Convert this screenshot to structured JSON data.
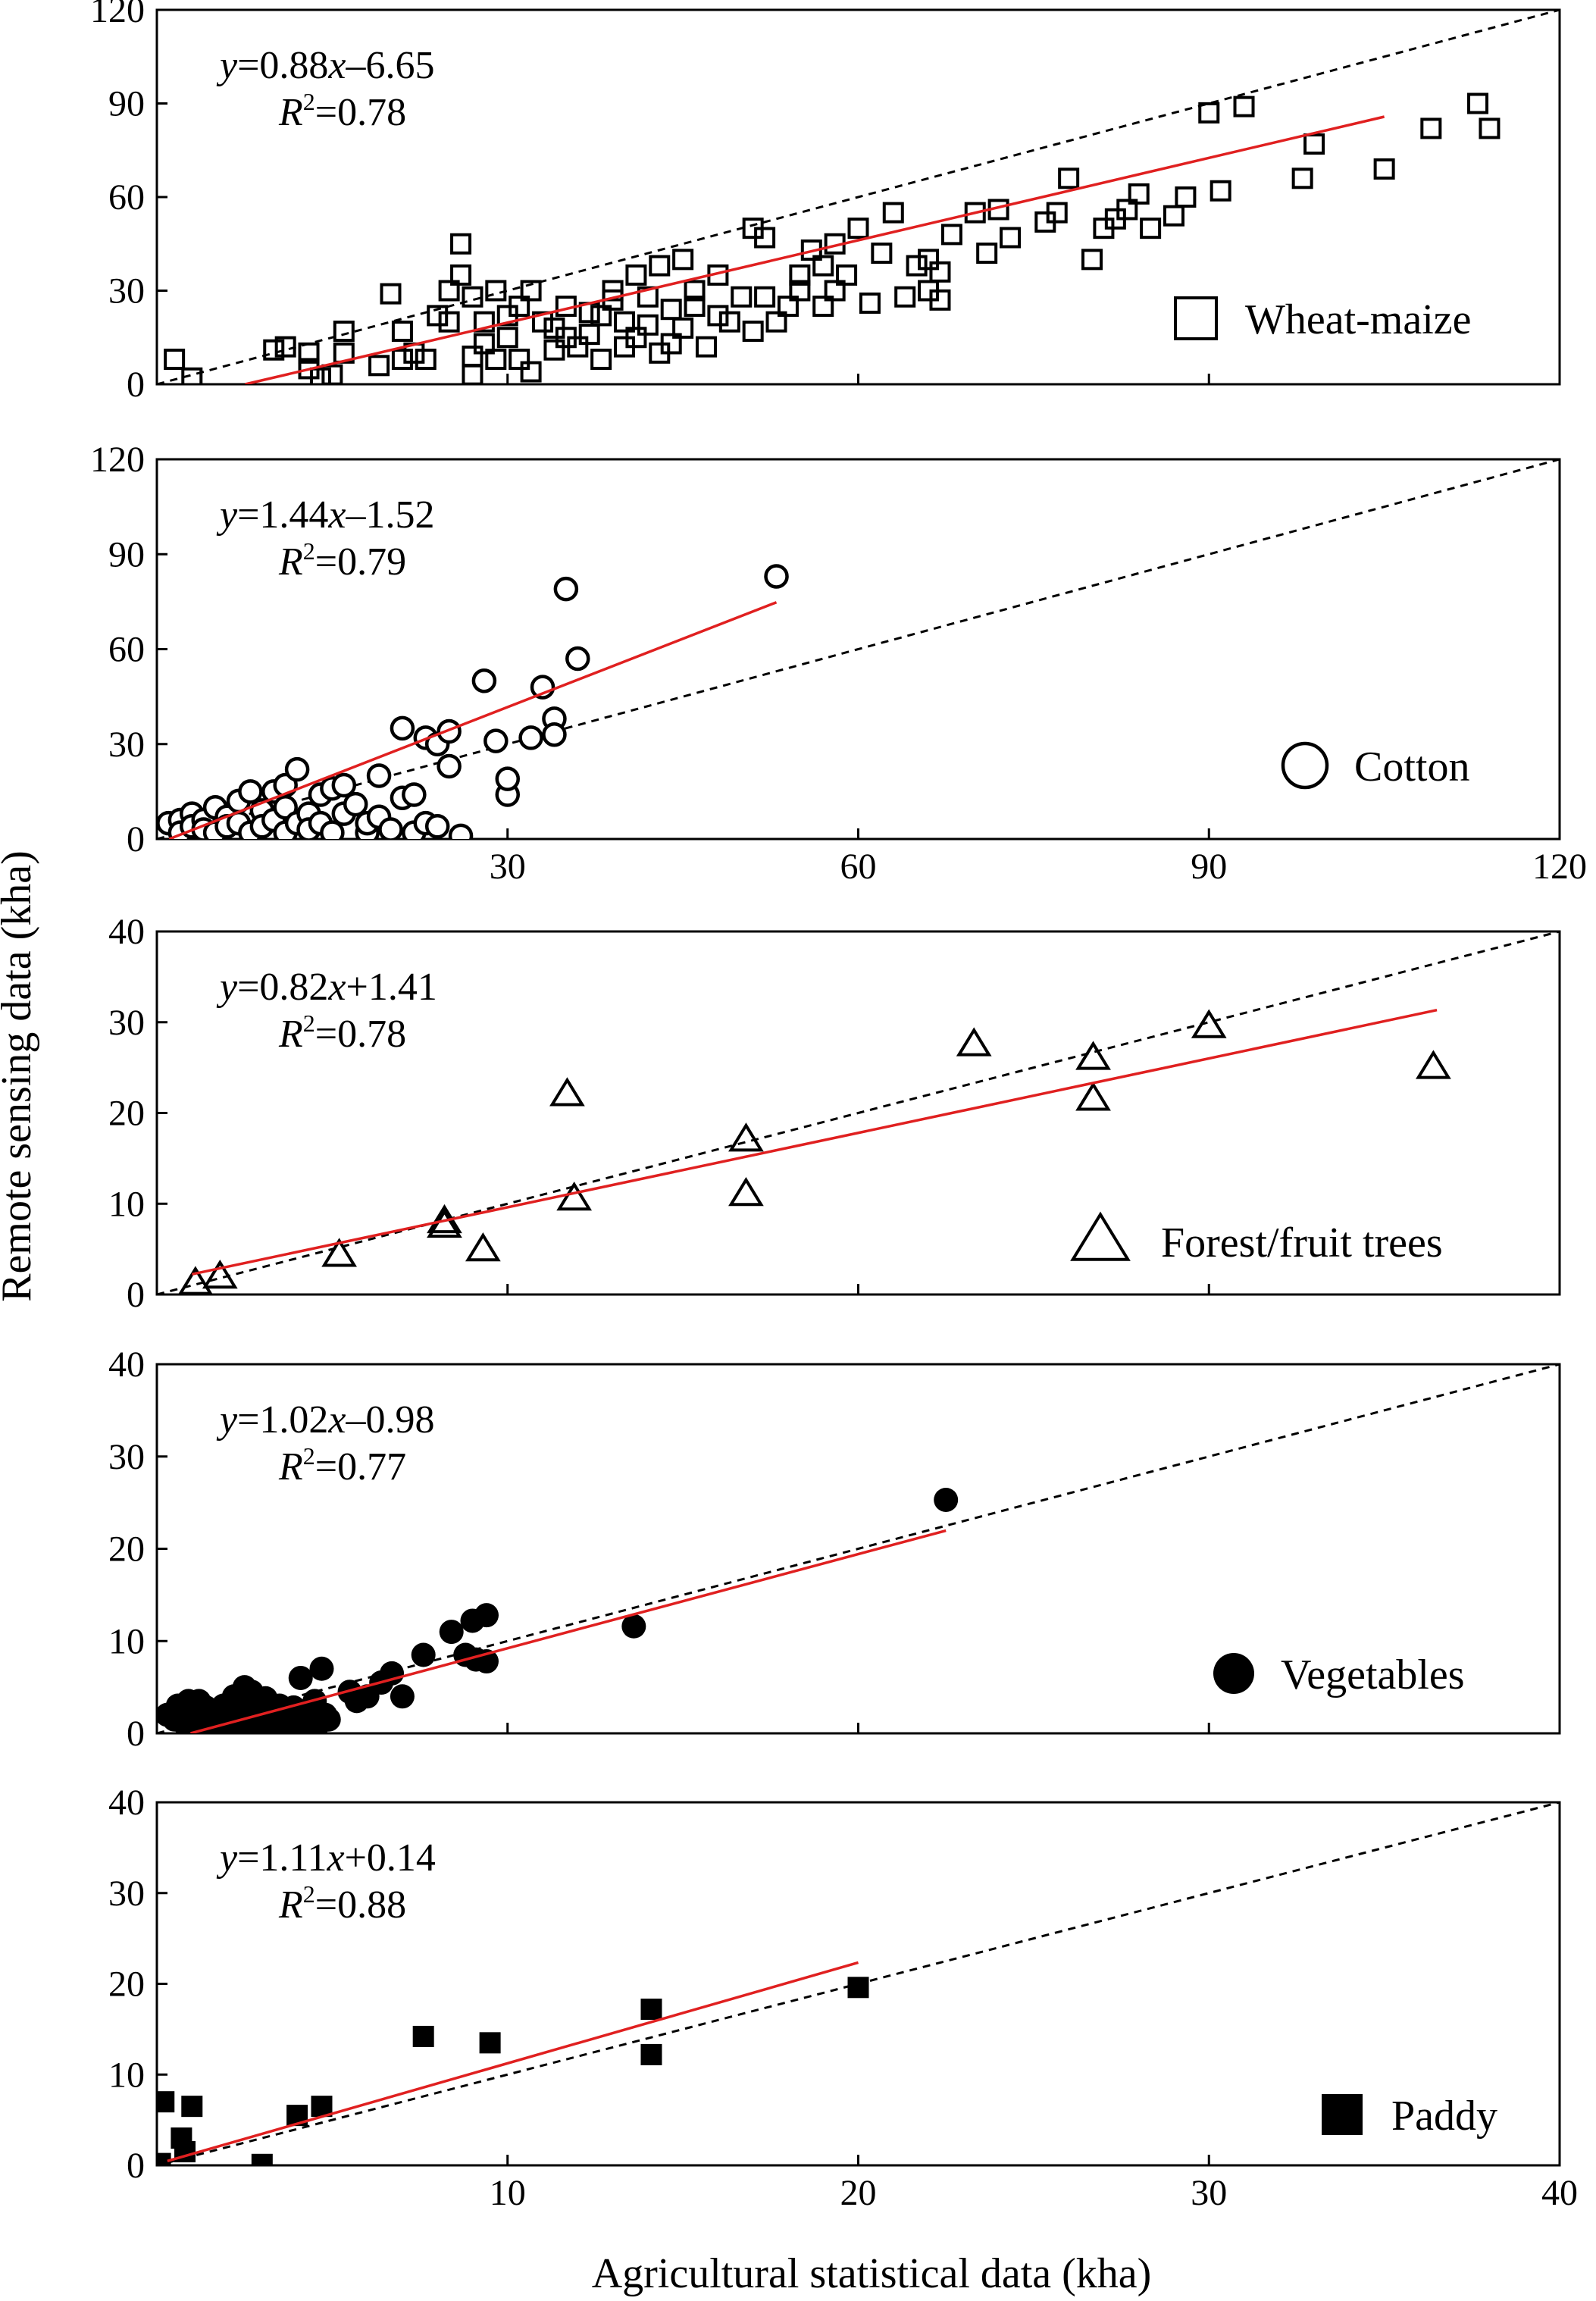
{
  "chart_data": {
    "type": "scatter",
    "xlabel": "Agricultural statistical data (kha)",
    "ylabel": "Remote sensing data (kha)",
    "grid": false,
    "colors": {
      "fit_line": "#e02020",
      "identity_line": "#000000",
      "markers": "#000000"
    },
    "panels": [
      {
        "name": "Wheat-maize",
        "marker": "open-square",
        "equation_lhs": "y",
        "equation_coef": "=0.88",
        "equation_var": "x",
        "equation_const": "–6.65",
        "r2_label": "R",
        "r2_sup": "2",
        "r2_value": "=0.78",
        "xlim": [
          0,
          120
        ],
        "ylim": [
          0,
          120
        ],
        "show_x_ticks": false,
        "x_ticks": [
          "30",
          "60",
          "90",
          "120"
        ],
        "y_ticks": [
          "0",
          "30",
          "60",
          "90",
          "120"
        ],
        "fit": {
          "slope": 0.88,
          "intercept": -6.65,
          "x_range": [
            0,
            105
          ]
        },
        "points": [
          [
            1.5,
            8
          ],
          [
            3,
            2
          ],
          [
            10,
            11
          ],
          [
            11,
            12
          ],
          [
            13,
            5
          ],
          [
            13,
            10
          ],
          [
            14,
            2
          ],
          [
            15,
            3
          ],
          [
            16,
            17
          ],
          [
            16,
            10
          ],
          [
            19,
            6
          ],
          [
            20,
            29
          ],
          [
            21,
            8
          ],
          [
            21,
            17
          ],
          [
            22,
            10
          ],
          [
            23,
            8
          ],
          [
            24,
            22
          ],
          [
            25,
            20
          ],
          [
            25,
            30
          ],
          [
            26,
            45
          ],
          [
            26,
            35
          ],
          [
            27,
            3
          ],
          [
            27,
            9
          ],
          [
            27,
            28
          ],
          [
            28,
            13
          ],
          [
            28,
            20
          ],
          [
            29,
            30
          ],
          [
            29,
            8
          ],
          [
            30,
            15
          ],
          [
            30,
            22
          ],
          [
            31,
            25
          ],
          [
            31,
            8
          ],
          [
            32,
            4
          ],
          [
            32,
            30
          ],
          [
            33,
            20
          ],
          [
            34,
            18
          ],
          [
            34,
            11
          ],
          [
            35,
            15
          ],
          [
            35,
            25
          ],
          [
            36,
            12
          ],
          [
            37,
            16
          ],
          [
            37,
            23
          ],
          [
            38,
            8
          ],
          [
            38,
            22
          ],
          [
            39,
            27
          ],
          [
            39,
            30
          ],
          [
            40,
            12
          ],
          [
            40,
            20
          ],
          [
            41,
            35
          ],
          [
            41,
            15
          ],
          [
            42,
            19
          ],
          [
            42,
            28
          ],
          [
            43,
            10
          ],
          [
            43,
            38
          ],
          [
            44,
            13
          ],
          [
            44,
            24
          ],
          [
            45,
            40
          ],
          [
            45,
            18
          ],
          [
            46,
            25
          ],
          [
            46,
            30
          ],
          [
            47,
            12
          ],
          [
            48,
            22
          ],
          [
            48,
            35
          ],
          [
            49,
            20
          ],
          [
            50,
            28
          ],
          [
            51,
            50
          ],
          [
            51,
            17
          ],
          [
            52,
            47
          ],
          [
            52,
            28
          ],
          [
            53,
            20
          ],
          [
            54,
            25
          ],
          [
            55,
            30
          ],
          [
            55,
            35
          ],
          [
            56,
            43
          ],
          [
            57,
            38
          ],
          [
            57,
            25
          ],
          [
            58,
            45
          ],
          [
            58,
            30
          ],
          [
            59,
            35
          ],
          [
            60,
            50
          ],
          [
            61,
            26
          ],
          [
            62,
            42
          ],
          [
            63,
            55
          ],
          [
            64,
            28
          ],
          [
            65,
            38
          ],
          [
            66,
            30
          ],
          [
            66,
            40
          ],
          [
            67,
            27
          ],
          [
            67,
            36
          ],
          [
            68,
            48
          ],
          [
            70,
            55
          ],
          [
            71,
            42
          ],
          [
            72,
            56
          ],
          [
            73,
            47
          ],
          [
            76,
            52
          ],
          [
            77,
            55
          ],
          [
            78,
            66
          ],
          [
            80,
            40
          ],
          [
            81,
            50
          ],
          [
            82,
            53
          ],
          [
            83,
            56
          ],
          [
            84,
            61
          ],
          [
            85,
            50
          ],
          [
            87,
            54
          ],
          [
            88,
            60
          ],
          [
            90,
            87
          ],
          [
            91,
            62
          ],
          [
            93,
            89
          ],
          [
            98,
            66
          ],
          [
            99,
            77
          ],
          [
            105,
            69
          ],
          [
            109,
            82
          ],
          [
            113,
            90
          ],
          [
            114,
            82
          ]
        ]
      },
      {
        "name": "Cotton",
        "marker": "open-circle",
        "equation_lhs": "y",
        "equation_coef": "=1.44",
        "equation_var": "x",
        "equation_const": "–1.52",
        "r2_label": "R",
        "r2_sup": "2",
        "r2_value": "=0.79",
        "xlim": [
          0,
          120
        ],
        "ylim": [
          0,
          120
        ],
        "show_x_ticks": true,
        "x_ticks": [
          "30",
          "60",
          "90",
          "120"
        ],
        "y_ticks": [
          "0",
          "30",
          "60",
          "90",
          "120"
        ],
        "fit": {
          "slope": 1.44,
          "intercept": -1.52,
          "x_range": [
            1,
            53
          ]
        },
        "points": [
          [
            1,
            5
          ],
          [
            2,
            6
          ],
          [
            2,
            2
          ],
          [
            3,
            8
          ],
          [
            3,
            4
          ],
          [
            4,
            6
          ],
          [
            4,
            3
          ],
          [
            5,
            10
          ],
          [
            5,
            2
          ],
          [
            6,
            7
          ],
          [
            6,
            4
          ],
          [
            7,
            12
          ],
          [
            7,
            5
          ],
          [
            8,
            15
          ],
          [
            8,
            2
          ],
          [
            9,
            9
          ],
          [
            9,
            4
          ],
          [
            10,
            6
          ],
          [
            10,
            15
          ],
          [
            11,
            2
          ],
          [
            11,
            17
          ],
          [
            11,
            10
          ],
          [
            12,
            22
          ],
          [
            12,
            5
          ],
          [
            13,
            8
          ],
          [
            13,
            3
          ],
          [
            14,
            14
          ],
          [
            14,
            5
          ],
          [
            15,
            16
          ],
          [
            15,
            2
          ],
          [
            16,
            17
          ],
          [
            16,
            8
          ],
          [
            17,
            11
          ],
          [
            18,
            2
          ],
          [
            18,
            5
          ],
          [
            19,
            20
          ],
          [
            19,
            7
          ],
          [
            20,
            3
          ],
          [
            21,
            35
          ],
          [
            21,
            13
          ],
          [
            22,
            2
          ],
          [
            22,
            14
          ],
          [
            23,
            5
          ],
          [
            23,
            32
          ],
          [
            24,
            30
          ],
          [
            24,
            4
          ],
          [
            25,
            34
          ],
          [
            25,
            23
          ],
          [
            26,
            1
          ],
          [
            28,
            50
          ],
          [
            29,
            31
          ],
          [
            30,
            14
          ],
          [
            30,
            19
          ],
          [
            32,
            32
          ],
          [
            33,
            48
          ],
          [
            34,
            38
          ],
          [
            34,
            33
          ],
          [
            35,
            79
          ],
          [
            36,
            57
          ],
          [
            53,
            83
          ]
        ]
      },
      {
        "name": "Forest/fruit trees",
        "marker": "open-triangle",
        "equation_lhs": "y",
        "equation_coef": "=0.82",
        "equation_var": "x",
        "equation_const": "+1.41",
        "r2_label": "R",
        "r2_sup": "2",
        "r2_value": "=0.78",
        "xlim": [
          0,
          40
        ],
        "ylim": [
          0,
          40
        ],
        "show_x_ticks": false,
        "x_ticks": [],
        "y_ticks": [
          "0",
          "10",
          "20",
          "30",
          "40"
        ],
        "fit": {
          "slope": 0.82,
          "intercept": 1.41,
          "x_range": [
            1.0,
            36.5
          ]
        },
        "points": [
          [
            1.1,
            1.2
          ],
          [
            1.8,
            1.9
          ],
          [
            5.2,
            4.3
          ],
          [
            8.2,
            8.0
          ],
          [
            8.2,
            7.5
          ],
          [
            9.3,
            4.9
          ],
          [
            11.7,
            22.0
          ],
          [
            11.9,
            10.5
          ],
          [
            16.8,
            17.0
          ],
          [
            16.8,
            11.0
          ],
          [
            23.3,
            27.5
          ],
          [
            26.7,
            26.0
          ],
          [
            26.7,
            21.5
          ],
          [
            30.0,
            29.5
          ],
          [
            36.4,
            25.0
          ]
        ]
      },
      {
        "name": "Vegetables",
        "marker": "filled-circle",
        "equation_lhs": "y",
        "equation_coef": "=1.02",
        "equation_var": "x",
        "equation_const": "–0.98",
        "r2_label": "R",
        "r2_sup": "2",
        "r2_value": "=0.77",
        "xlim": [
          0,
          40
        ],
        "ylim": [
          0,
          40
        ],
        "show_x_ticks": false,
        "x_ticks": [],
        "y_ticks": [
          "0",
          "10",
          "20",
          "30",
          "40"
        ],
        "fit": {
          "slope": 1.02,
          "intercept": -0.98,
          "x_range": [
            0.5,
            22.5
          ]
        },
        "points": [
          [
            0.3,
            2.0
          ],
          [
            0.5,
            1.5
          ],
          [
            0.6,
            3.0
          ],
          [
            0.8,
            1.0
          ],
          [
            0.9,
            3.5
          ],
          [
            1.0,
            2.5
          ],
          [
            1.1,
            0.5
          ],
          [
            1.2,
            3.5
          ],
          [
            1.3,
            1.5
          ],
          [
            1.4,
            2.8
          ],
          [
            1.5,
            0.8
          ],
          [
            1.6,
            2.2
          ],
          [
            1.8,
            1.2
          ],
          [
            1.9,
            3.0
          ],
          [
            2.0,
            0.5
          ],
          [
            2.1,
            2.0
          ],
          [
            2.2,
            4.0
          ],
          [
            2.3,
            1.0
          ],
          [
            2.4,
            3.2
          ],
          [
            2.5,
            5.0
          ],
          [
            2.6,
            1.8
          ],
          [
            2.7,
            4.5
          ],
          [
            2.8,
            0.8
          ],
          [
            2.9,
            2.6
          ],
          [
            3.0,
            1.5
          ],
          [
            3.1,
            3.8
          ],
          [
            3.2,
            0.5
          ],
          [
            3.3,
            2.3
          ],
          [
            3.4,
            1.2
          ],
          [
            3.5,
            3.0
          ],
          [
            3.6,
            0.6
          ],
          [
            3.7,
            2.0
          ],
          [
            3.8,
            1.0
          ],
          [
            3.9,
            2.8
          ],
          [
            4.0,
            1.8
          ],
          [
            4.1,
            6.0
          ],
          [
            4.2,
            0.8
          ],
          [
            4.3,
            2.5
          ],
          [
            4.4,
            1.5
          ],
          [
            4.5,
            3.5
          ],
          [
            4.6,
            1.0
          ],
          [
            4.7,
            7.0
          ],
          [
            4.8,
            2.0
          ],
          [
            4.9,
            1.5
          ],
          [
            5.5,
            4.5
          ],
          [
            5.7,
            3.5
          ],
          [
            6.0,
            4.0
          ],
          [
            6.4,
            5.5
          ],
          [
            6.7,
            6.5
          ],
          [
            7.0,
            4.0
          ],
          [
            7.6,
            8.5
          ],
          [
            8.4,
            11.0
          ],
          [
            8.8,
            8.5
          ],
          [
            9.0,
            12.2
          ],
          [
            9.1,
            8.0
          ],
          [
            9.4,
            12.8
          ],
          [
            9.4,
            7.8
          ],
          [
            13.6,
            11.6
          ],
          [
            22.5,
            25.3
          ]
        ]
      },
      {
        "name": "Paddy",
        "marker": "filled-square",
        "equation_lhs": "y",
        "equation_coef": "=1.11",
        "equation_var": "x",
        "equation_const": "+0.14",
        "r2_label": "R",
        "r2_sup": "2",
        "r2_value": "=0.88",
        "xlim": [
          0,
          40
        ],
        "ylim": [
          0,
          40
        ],
        "show_x_ticks": true,
        "x_ticks": [
          "10",
          "20",
          "30",
          "40"
        ],
        "y_ticks": [
          "0",
          "10",
          "20",
          "30",
          "40"
        ],
        "fit": {
          "slope": 1.11,
          "intercept": 0.14,
          "x_range": [
            0.3,
            20.0
          ]
        },
        "points": [
          [
            0.1,
            0.2
          ],
          [
            0.2,
            7.0
          ],
          [
            0.7,
            3.0
          ],
          [
            0.8,
            1.5
          ],
          [
            1.0,
            6.5
          ],
          [
            3.0,
            0.1
          ],
          [
            4.0,
            5.5
          ],
          [
            4.7,
            6.5
          ],
          [
            7.6,
            14.2
          ],
          [
            9.5,
            13.5
          ],
          [
            14.1,
            17.2
          ],
          [
            14.1,
            12.2
          ],
          [
            20.0,
            19.6
          ]
        ]
      }
    ]
  }
}
